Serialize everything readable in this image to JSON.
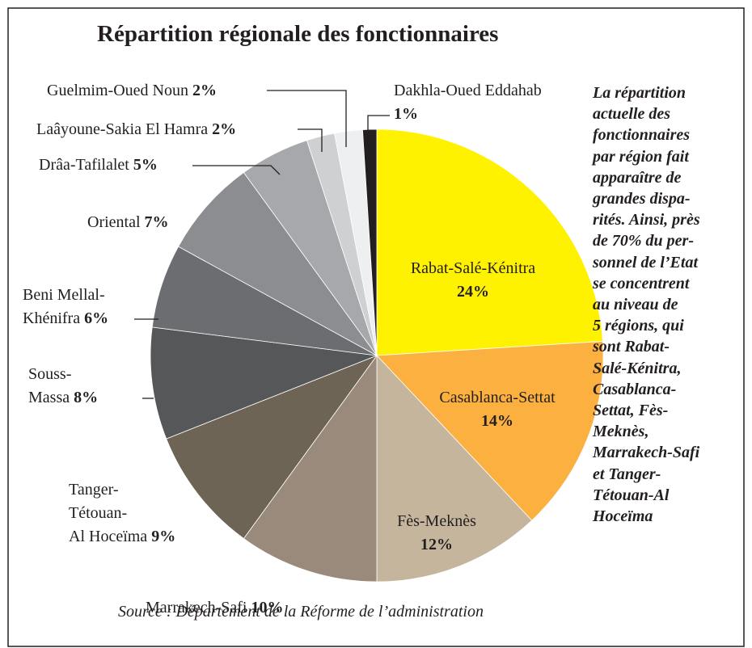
{
  "chart_data": {
    "type": "pie",
    "title": "Répartition régionale des fonctionnaires",
    "categories": [
      "Rabat-Salé-Kénitra",
      "Casablanca-Settat",
      "Fès-Meknès",
      "Marrakech-Safi",
      "Tanger-Tétouan-Al Hoceïma",
      "Souss-Massa",
      "Beni Mellal-Khénifra",
      "Oriental",
      "Drâa-Tafilalet",
      "Laâyoune-Sakia El Hamra",
      "Guelmim-Oued Noun",
      "Dakhla-Oued Eddahab"
    ],
    "values": [
      24,
      14,
      12,
      10,
      9,
      8,
      6,
      7,
      5,
      2,
      2,
      1
    ],
    "value_labels": [
      "24%",
      "14%",
      "12%",
      "10%",
      "9%",
      "8%",
      "6%",
      "7%",
      "5%",
      "2%",
      "2%",
      "1%"
    ],
    "colors": [
      "#fff200",
      "#fbb040",
      "#c4b59c",
      "#9a8a7b",
      "#6e6455",
      "#555759",
      "#6b6d70",
      "#8b8d90",
      "#a6a8ab",
      "#cfd0d2",
      "#eeeff0",
      "#231f20"
    ],
    "note": [
      "La répartition",
      "actuelle des",
      "fonctionnaires",
      "par région fait",
      "apparaître de",
      "grandes dispa-",
      "rités. Ainsi, près",
      "de 70% du per-",
      "sonnel de l’Etat",
      "se concentrent",
      "au niveau de",
      "5 régions, qui",
      "sont Rabat-",
      "Salé-Kénitra,",
      "Casablanca-",
      "Settat, Fès-",
      "Meknès,",
      "Marrakech-Safi",
      "et Tanger-",
      "Tétouan-Al",
      "Hoceïma"
    ],
    "source": "Source : Département de la Réforme de l’administration"
  }
}
